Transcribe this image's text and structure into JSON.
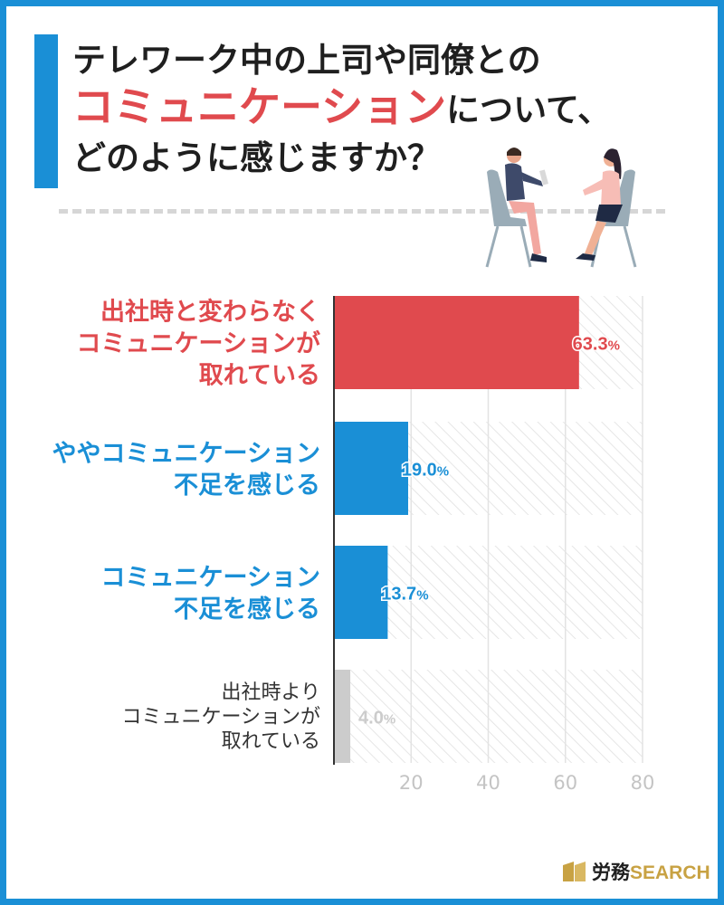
{
  "title": {
    "line1": "テレワーク中の上司や同僚との",
    "highlight": "コミュニケーション",
    "line2_rest": "について、",
    "line3": "どのように感じますか？"
  },
  "brand": {
    "kanji": "労務",
    "latin": "SEARCH"
  },
  "colors": {
    "accent_blue": "#1a8fd6",
    "red": "#e04a4e",
    "gray": "#cccccc"
  },
  "chart_data": {
    "type": "bar",
    "orientation": "horizontal",
    "categories": [
      [
        "出社時と変わらなく",
        "コミュニケーションが",
        "取れている"
      ],
      [
        "ややコミュニケーション",
        "不足を感じる"
      ],
      [
        "コミュニケーション",
        "不足を感じる"
      ],
      [
        "出社時より",
        "コミュニケーションが",
        "取れている"
      ]
    ],
    "values": [
      63.3,
      19.0,
      13.7,
      4.0
    ],
    "value_labels": [
      {
        "main": "63.3",
        "unit": "%"
      },
      {
        "main": "19.0",
        "unit": "%"
      },
      {
        "main": "13.7",
        "unit": "%"
      },
      {
        "main": "4.0",
        "unit": "%"
      }
    ],
    "bar_colors": [
      "#e04a4e",
      "#1a8fd6",
      "#1a8fd6",
      "#cccccc"
    ],
    "label_colors": [
      "#e04a4e",
      "#1a8fd6",
      "#1a8fd6",
      "#333333"
    ],
    "value_colors": [
      "#e04a4e",
      "#1a8fd6",
      "#1a8fd6",
      "#cccccc"
    ],
    "x_ticks": [
      20,
      40,
      60,
      80
    ],
    "xlim": [
      0,
      80
    ],
    "grid": true
  }
}
